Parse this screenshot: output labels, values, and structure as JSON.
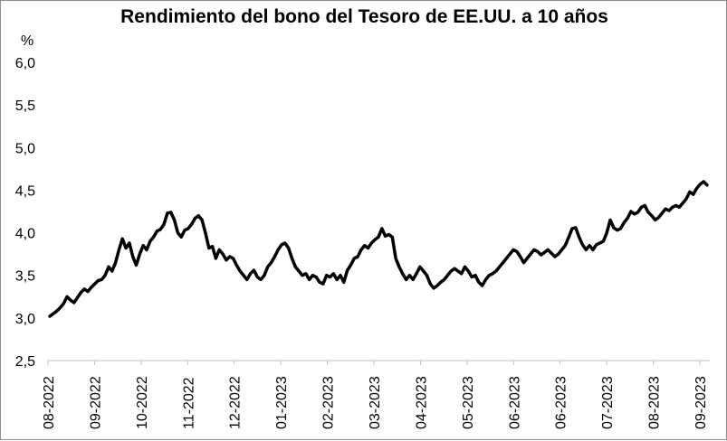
{
  "chart_data": {
    "type": "line",
    "title": "Rendimiento del bono del Tesoro de EE.UU. a 10 años",
    "ylabel": "%",
    "xlabel": "",
    "ylim": [
      2.5,
      6.0
    ],
    "yticks": [
      "2,5",
      "3,0",
      "3,5",
      "4,0",
      "4,5",
      "5,0",
      "5,5",
      "6,0"
    ],
    "ytick_values": [
      2.5,
      3.0,
      3.5,
      4.0,
      4.5,
      5.0,
      5.5,
      6.0
    ],
    "xticks": [
      "08-2022",
      "09-2022",
      "10-2022",
      "11-2022",
      "12-2022",
      "01-2023",
      "02-2023",
      "03-2023",
      "04-2023",
      "05-2023",
      "06-2023",
      "06-2023",
      "07-2023",
      "08-2023",
      "09-2023"
    ],
    "grid": false,
    "legend": "none",
    "line_color": "#000000",
    "series": [
      {
        "values": [
          3.02,
          3.05,
          3.08,
          3.12,
          3.17,
          3.25,
          3.21,
          3.18,
          3.24,
          3.3,
          3.34,
          3.31,
          3.36,
          3.4,
          3.44,
          3.45,
          3.5,
          3.6,
          3.55,
          3.65,
          3.8,
          3.93,
          3.82,
          3.88,
          3.72,
          3.62,
          3.75,
          3.85,
          3.8,
          3.9,
          3.95,
          4.02,
          4.04,
          4.1,
          4.23,
          4.24,
          4.15,
          4.0,
          3.95,
          4.03,
          4.05,
          4.1,
          4.17,
          4.2,
          4.15,
          4.0,
          3.82,
          3.84,
          3.7,
          3.8,
          3.75,
          3.68,
          3.72,
          3.7,
          3.62,
          3.55,
          3.5,
          3.45,
          3.52,
          3.56,
          3.48,
          3.45,
          3.5,
          3.6,
          3.65,
          3.72,
          3.8,
          3.86,
          3.88,
          3.82,
          3.7,
          3.6,
          3.55,
          3.5,
          3.52,
          3.45,
          3.5,
          3.48,
          3.42,
          3.4,
          3.5,
          3.48,
          3.52,
          3.45,
          3.5,
          3.42,
          3.56,
          3.62,
          3.7,
          3.72,
          3.8,
          3.85,
          3.82,
          3.88,
          3.92,
          3.95,
          4.05,
          3.96,
          3.98,
          3.95,
          3.7,
          3.6,
          3.52,
          3.45,
          3.5,
          3.45,
          3.52,
          3.6,
          3.55,
          3.5,
          3.4,
          3.35,
          3.38,
          3.42,
          3.45,
          3.5,
          3.55,
          3.58,
          3.55,
          3.52,
          3.6,
          3.55,
          3.48,
          3.5,
          3.42,
          3.38,
          3.45,
          3.5,
          3.52,
          3.55,
          3.6,
          3.65,
          3.7,
          3.75,
          3.8,
          3.78,
          3.72,
          3.65,
          3.7,
          3.75,
          3.8,
          3.78,
          3.74,
          3.77,
          3.8,
          3.76,
          3.72,
          3.75,
          3.8,
          3.85,
          3.95,
          4.05,
          4.06,
          3.95,
          3.86,
          3.8,
          3.85,
          3.8,
          3.86,
          3.88,
          3.9,
          4.0,
          4.15,
          4.06,
          4.03,
          4.05,
          4.12,
          4.17,
          4.25,
          4.22,
          4.24,
          4.3,
          4.32,
          4.24,
          4.2,
          4.15,
          4.18,
          4.23,
          4.28,
          4.26,
          4.3,
          4.32,
          4.3,
          4.35,
          4.4,
          4.48,
          4.45,
          4.52,
          4.57,
          4.6,
          4.56
        ]
      }
    ]
  }
}
